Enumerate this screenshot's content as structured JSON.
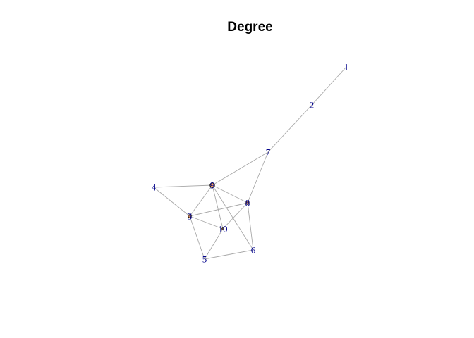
{
  "chart_data": {
    "type": "network",
    "title": "Degree",
    "nodes": [
      {
        "id": "1",
        "label": "1",
        "degree": 1
      },
      {
        "id": "2",
        "label": "2",
        "degree": 2
      },
      {
        "id": "3",
        "label": "3",
        "degree": 5
      },
      {
        "id": "4",
        "label": "4",
        "degree": 2
      },
      {
        "id": "5",
        "label": "5",
        "degree": 3
      },
      {
        "id": "6",
        "label": "6",
        "degree": 3
      },
      {
        "id": "7",
        "label": "7",
        "degree": 3
      },
      {
        "id": "8",
        "label": "8",
        "degree": 5
      },
      {
        "id": "9",
        "label": "9",
        "degree": 6
      },
      {
        "id": "10",
        "label": "10",
        "degree": 4
      }
    ],
    "edges": [
      [
        "1",
        "2"
      ],
      [
        "2",
        "7"
      ],
      [
        "7",
        "9"
      ],
      [
        "7",
        "8"
      ],
      [
        "4",
        "9"
      ],
      [
        "4",
        "3"
      ],
      [
        "9",
        "3"
      ],
      [
        "9",
        "8"
      ],
      [
        "9",
        "10"
      ],
      [
        "9",
        "6"
      ],
      [
        "3",
        "8"
      ],
      [
        "3",
        "10"
      ],
      [
        "3",
        "5"
      ],
      [
        "8",
        "10"
      ],
      [
        "8",
        "6"
      ],
      [
        "10",
        "5"
      ],
      [
        "5",
        "6"
      ]
    ],
    "node_fill": "#f4a460",
    "node_border": "#000000",
    "label_color": "#00008b",
    "edge_color": "#a9a9a9"
  }
}
